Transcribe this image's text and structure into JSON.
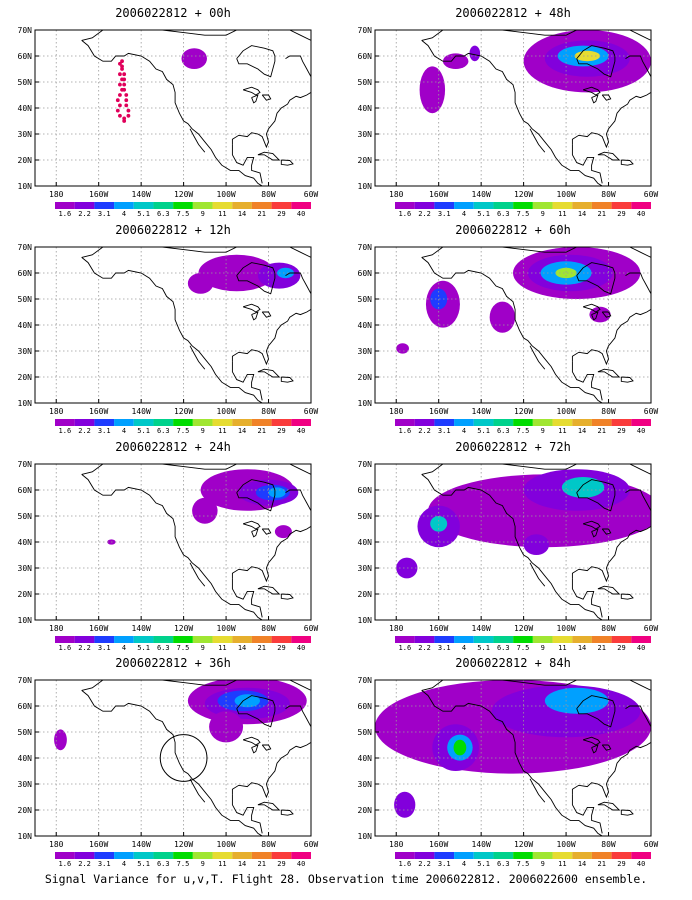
{
  "colors": {
    "levels": [
      "#a000c8",
      "#8200dc",
      "#1e3cff",
      "#00a0ff",
      "#00c8c8",
      "#00d28c",
      "#00dc00",
      "#a0e632",
      "#e6dc32",
      "#e6af2d",
      "#f08228",
      "#fa3c3c",
      "#f00082"
    ],
    "map_line": "#000000",
    "grid": "#9a9a9a",
    "observation_dots": "#e0005a"
  },
  "colorbar_labels": [
    "1.6",
    "2.2",
    "3.1",
    "4",
    "5.1",
    "6.3",
    "7.5",
    "9",
    "11",
    "14",
    "21",
    "29",
    "40"
  ],
  "lat_labels": [
    "70N",
    "60N",
    "50N",
    "40N",
    "30N",
    "20N",
    "10N"
  ],
  "lon_labels": [
    "180",
    "160W",
    "140W",
    "120W",
    "100W",
    "80W",
    "60W"
  ],
  "panels": [
    {
      "title": "2006022812 + 00h",
      "fields": [
        {
          "lon": -115,
          "lat": 59,
          "rx": 6,
          "ry": 4,
          "level": 0
        }
      ]
    },
    {
      "title": "2006022812 + 12h",
      "fields": [
        {
          "lon": -95,
          "lat": 60,
          "rx": 18,
          "ry": 7,
          "level": 0
        },
        {
          "lon": -75,
          "lat": 59,
          "rx": 10,
          "ry": 5,
          "level": 1
        },
        {
          "lon": -72,
          "lat": 60,
          "rx": 4,
          "ry": 2,
          "level": 3
        },
        {
          "lon": -112,
          "lat": 56,
          "rx": 6,
          "ry": 4,
          "level": 0
        }
      ]
    },
    {
      "title": "2006022812 + 24h",
      "fields": [
        {
          "lon": -90,
          "lat": 60,
          "rx": 22,
          "ry": 8,
          "level": 0
        },
        {
          "lon": -80,
          "lat": 59,
          "rx": 14,
          "ry": 5,
          "level": 1
        },
        {
          "lon": -78,
          "lat": 59,
          "rx": 8,
          "ry": 3,
          "level": 2
        },
        {
          "lon": -76,
          "lat": 59,
          "rx": 4,
          "ry": 2,
          "level": 3
        },
        {
          "lon": -110,
          "lat": 52,
          "rx": 6,
          "ry": 5,
          "level": 0
        },
        {
          "lon": -73,
          "lat": 44,
          "rx": 4,
          "ry": 2.5,
          "level": 0
        },
        {
          "lon": -154,
          "lat": 40,
          "rx": 2,
          "ry": 1,
          "level": 0
        }
      ]
    },
    {
      "title": "2006022812 + 36h",
      "fields": [
        {
          "lon": -90,
          "lat": 62,
          "rx": 28,
          "ry": 9,
          "level": 0
        },
        {
          "lon": -90,
          "lat": 61,
          "rx": 20,
          "ry": 6,
          "level": 1
        },
        {
          "lon": -92,
          "lat": 62,
          "rx": 12,
          "ry": 4,
          "level": 2
        },
        {
          "lon": -90,
          "lat": 62,
          "rx": 6,
          "ry": 2.5,
          "level": 3
        },
        {
          "lon": -100,
          "lat": 52,
          "rx": 8,
          "ry": 6,
          "level": 0
        },
        {
          "lon": -178,
          "lat": 47,
          "rx": 3,
          "ry": 4,
          "level": 0
        }
      ]
    },
    {
      "title": "2006022812 + 48h",
      "fields": [
        {
          "lon": -90,
          "lat": 58,
          "rx": 30,
          "ry": 12,
          "level": 0
        },
        {
          "lon": -90,
          "lat": 59,
          "rx": 20,
          "ry": 7,
          "level": 1
        },
        {
          "lon": -92,
          "lat": 60,
          "rx": 12,
          "ry": 4,
          "level": 3
        },
        {
          "lon": -90,
          "lat": 60,
          "rx": 6,
          "ry": 2,
          "level": 8
        },
        {
          "lon": -163,
          "lat": 47,
          "rx": 6,
          "ry": 9,
          "level": 0
        },
        {
          "lon": -152,
          "lat": 58,
          "rx": 6,
          "ry": 3,
          "level": 0
        },
        {
          "lon": -143,
          "lat": 61,
          "rx": 2.5,
          "ry": 3,
          "level": 1
        }
      ]
    },
    {
      "title": "2006022812 + 60h",
      "fields": [
        {
          "lon": -95,
          "lat": 60,
          "rx": 30,
          "ry": 10,
          "level": 0
        },
        {
          "lon": -98,
          "lat": 60,
          "rx": 20,
          "ry": 7,
          "level": 1
        },
        {
          "lon": -100,
          "lat": 60,
          "rx": 12,
          "ry": 4.5,
          "level": 3
        },
        {
          "lon": -100,
          "lat": 60,
          "rx": 5,
          "ry": 2,
          "level": 7
        },
        {
          "lon": -158,
          "lat": 48,
          "rx": 8,
          "ry": 9,
          "level": 0
        },
        {
          "lon": -160,
          "lat": 50,
          "rx": 4,
          "ry": 4,
          "level": 2
        },
        {
          "lon": -130,
          "lat": 43,
          "rx": 6,
          "ry": 6,
          "level": 0
        },
        {
          "lon": -84,
          "lat": 44,
          "rx": 5,
          "ry": 3,
          "level": 0
        },
        {
          "lon": -177,
          "lat": 31,
          "rx": 3,
          "ry": 2,
          "level": 0
        }
      ]
    },
    {
      "title": "2006022812 + 72h",
      "fields": [
        {
          "lon": -110,
          "lat": 52,
          "rx": 55,
          "ry": 14,
          "level": 0
        },
        {
          "lon": -95,
          "lat": 60,
          "rx": 25,
          "ry": 8,
          "level": 1
        },
        {
          "lon": -92,
          "lat": 61,
          "rx": 10,
          "ry": 4,
          "level": 4
        },
        {
          "lon": -160,
          "lat": 46,
          "rx": 10,
          "ry": 8,
          "level": 1
        },
        {
          "lon": -160,
          "lat": 47,
          "rx": 4,
          "ry": 3,
          "level": 4
        },
        {
          "lon": -175,
          "lat": 30,
          "rx": 5,
          "ry": 4,
          "level": 1
        },
        {
          "lon": -114,
          "lat": 39,
          "rx": 6,
          "ry": 4,
          "level": 1
        }
      ]
    },
    {
      "title": "2006022812 + 84h",
      "fields": [
        {
          "lon": -125,
          "lat": 52,
          "rx": 65,
          "ry": 18,
          "level": 0
        },
        {
          "lon": -100,
          "lat": 58,
          "rx": 35,
          "ry": 10,
          "level": 1
        },
        {
          "lon": -95,
          "lat": 62,
          "rx": 15,
          "ry": 5,
          "level": 3
        },
        {
          "lon": -152,
          "lat": 44,
          "rx": 11,
          "ry": 9,
          "level": 1
        },
        {
          "lon": -150,
          "lat": 44,
          "rx": 6,
          "ry": 5,
          "level": 3
        },
        {
          "lon": -150,
          "lat": 44,
          "rx": 3,
          "ry": 3,
          "level": 6
        },
        {
          "lon": -176,
          "lat": 22,
          "rx": 5,
          "ry": 5,
          "level": 1
        }
      ]
    }
  ],
  "observation_points": [
    [
      -150,
      57
    ],
    [
      -149,
      55
    ],
    [
      -150,
      53
    ],
    [
      -149,
      51
    ],
    [
      -150,
      49
    ],
    [
      -149,
      47
    ],
    [
      -150,
      45
    ],
    [
      -151,
      43
    ],
    [
      -150,
      41
    ],
    [
      -151,
      39
    ],
    [
      -150,
      37
    ],
    [
      -148,
      35
    ],
    [
      -146,
      37
    ],
    [
      -146,
      39
    ],
    [
      -147,
      41
    ],
    [
      -147,
      43
    ],
    [
      -147,
      45
    ],
    [
      -148,
      47
    ],
    [
      -148,
      49
    ],
    [
      -148,
      51
    ],
    [
      -148,
      53
    ],
    [
      -149,
      56
    ],
    [
      -149,
      58
    ],
    [
      -148,
      36
    ]
  ],
  "observation_region": {
    "lon": -120,
    "lat": 40,
    "r": 11
  },
  "caption": "Signal Variance for u,v,T. Flight 28. Observation time 2006022812. 2006022600 ensemble."
}
